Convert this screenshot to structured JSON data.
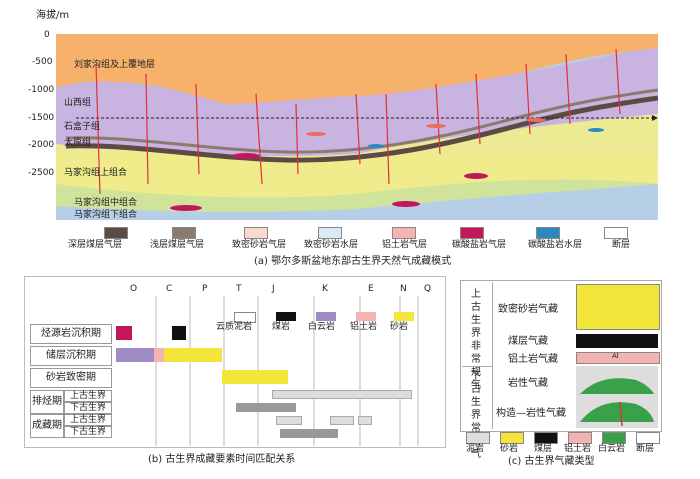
{
  "panel_a": {
    "y_axis_title": "海拔/m",
    "y_ticks": [
      "0",
      "-500",
      "-1000",
      "-1500",
      "-2000",
      "-2500"
    ],
    "layer_labels": [
      "刘家沟组及上覆地层",
      "山西组",
      "石盒子组",
      "太原组",
      "马家沟组上组合",
      "马家沟组中组合",
      "马家沟组下组合"
    ],
    "legend": [
      "深层煤层气层",
      "浅层煤层气层",
      "致密砂岩气层",
      "致密砂岩水层",
      "铝土岩气层",
      "碳酸盐岩气层",
      "碳酸盐岩水层",
      "断层"
    ],
    "caption": "(a) 鄂尔多斯盆地东部古生界天然气成藏模式",
    "colors": {
      "top": "#f6b26b",
      "upper_purple": "#c9b3e0",
      "yellow": "#f3ec8b",
      "green": "#cfe39a",
      "blue": "#b7cfe6",
      "coal": "#6b5a52",
      "fault": "#e0303a"
    }
  },
  "panel_b": {
    "periods": [
      "O",
      "C",
      "P",
      "T",
      "J",
      "K",
      "E",
      "N",
      "Q"
    ],
    "rows": [
      "烃源岩沉积期",
      "储层沉积期",
      "砂岩致密期",
      "上古生界",
      "下古生界",
      "上古生界",
      "下古生界"
    ],
    "groups": [
      "排烃期",
      "成藏期"
    ],
    "legend": [
      "云质泥岩",
      "煤岩",
      "白云岩",
      "铝土岩",
      "砂岩"
    ],
    "caption": "(b) 古生界成藏要素时间匹配关系"
  },
  "panel_c": {
    "categories": [
      "上古生界非常规气",
      "下古生界常规气"
    ],
    "types": [
      "致密砂岩气藏",
      "煤层气藏",
      "铝土岩气藏",
      "岩性气藏",
      "构造—岩性气藏"
    ],
    "al_label": "Al",
    "legend": [
      "泥岩",
      "砂岩",
      "煤层",
      "铝土岩",
      "白云岩",
      "断层"
    ],
    "caption": "(c) 古生界气藏类型"
  }
}
